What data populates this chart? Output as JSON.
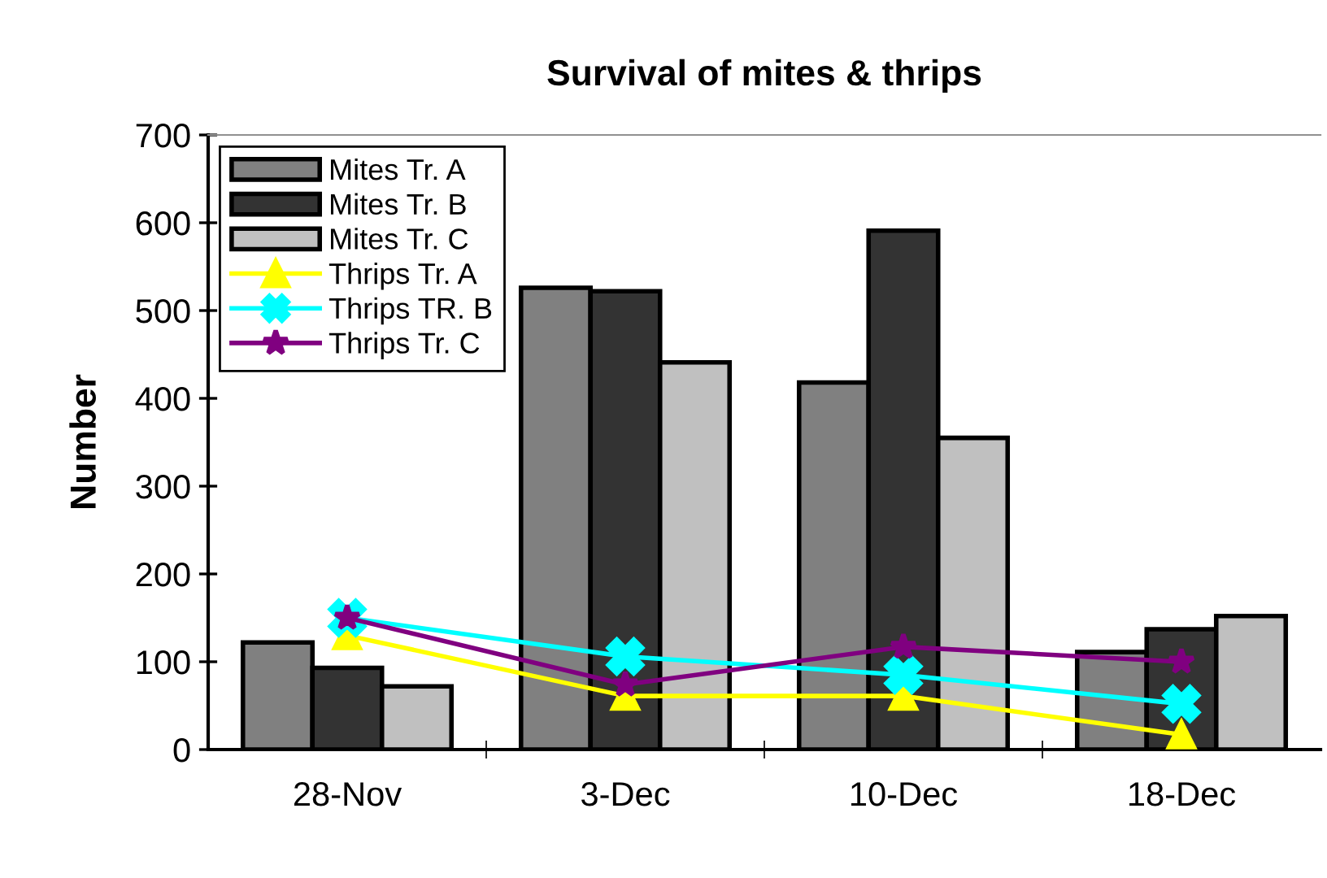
{
  "chart_data": {
    "type": "bar",
    "title": "Survival of mites & thrips",
    "ylabel": "Number",
    "categories": [
      "28-Nov",
      "3-Dec",
      "10-Dec",
      "18-Dec"
    ],
    "series": [
      {
        "name": "Mites Tr. A",
        "color": "#808080",
        "values": [
          122,
          526,
          418,
          111
        ]
      },
      {
        "name": "Mites Tr. B",
        "color": "#333333",
        "values": [
          93,
          522,
          591,
          137
        ]
      },
      {
        "name": "Mites Tr. C",
        "color": "#c0c0c0",
        "values": [
          72,
          441,
          355,
          152
        ]
      },
      {
        "name": "Thrips Tr. A",
        "type": "line",
        "marker": "triangle",
        "color": "#ffff00",
        "values": [
          130,
          61,
          61,
          17
        ]
      },
      {
        "name": "Thrips TR. B",
        "type": "line",
        "marker": "cross",
        "color": "#00ffff",
        "values": [
          150,
          106,
          85,
          52
        ]
      },
      {
        "name": "Thrips Tr. C",
        "type": "line",
        "marker": "star",
        "color": "#800080",
        "values": [
          150,
          74,
          117,
          100
        ]
      }
    ],
    "ylim": [
      0,
      700
    ],
    "yticks": [
      0,
      100,
      200,
      300,
      400,
      500,
      600,
      700
    ],
    "grid": false,
    "legend": "top left"
  }
}
